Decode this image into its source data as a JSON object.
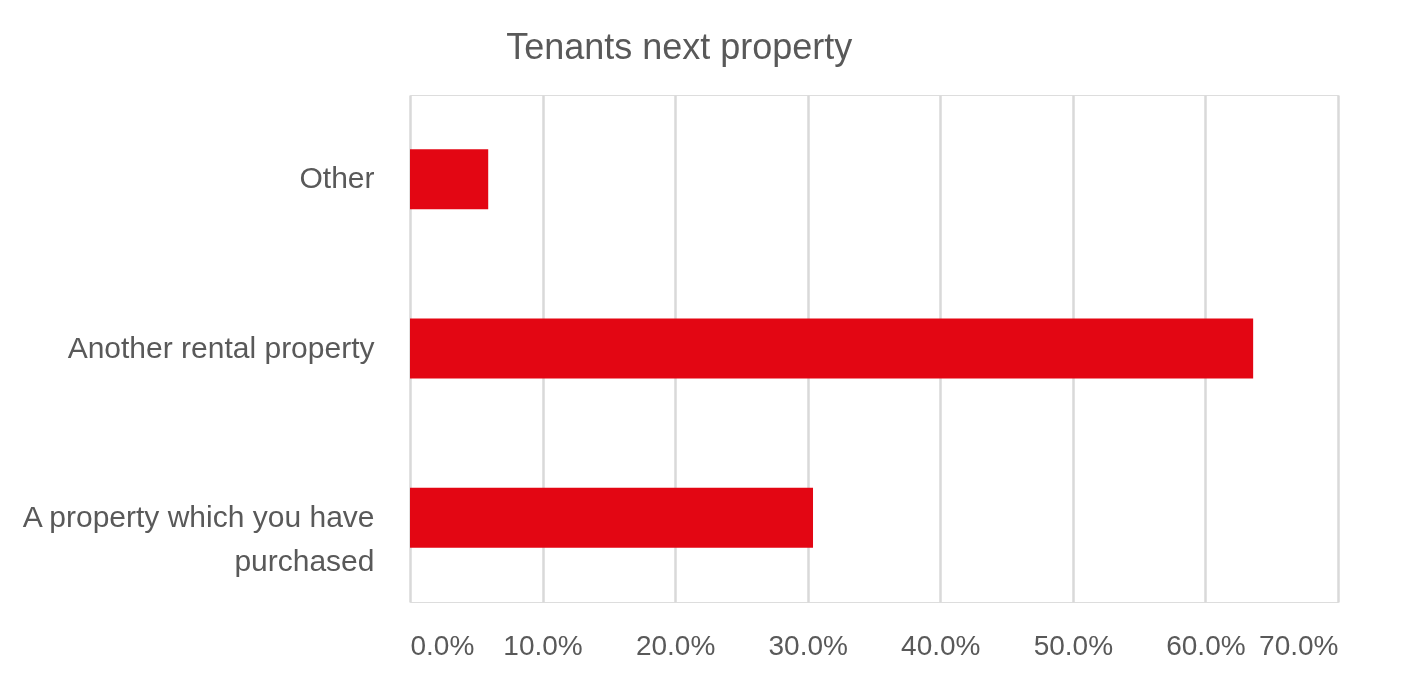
{
  "chart_data": {
    "type": "bar",
    "orientation": "horizontal",
    "title": "Tenants next property",
    "categories": [
      "Other",
      "Another rental property",
      "A property which you have purchased"
    ],
    "values": [
      5.9,
      63.6,
      30.4
    ],
    "color": "#e30613",
    "xlim": [
      0,
      70
    ],
    "xticks": [
      {
        "value": 0,
        "label": "0.0%"
      },
      {
        "value": 10,
        "label": "10.0%"
      },
      {
        "value": 20,
        "label": "20.0%"
      },
      {
        "value": 30,
        "label": "30.0%"
      },
      {
        "value": 40,
        "label": "40.0%"
      },
      {
        "value": 50,
        "label": "50.0%"
      },
      {
        "value": 60,
        "label": "60.0%"
      },
      {
        "value": 70,
        "label": "70.0%"
      }
    ],
    "grid": "x"
  }
}
